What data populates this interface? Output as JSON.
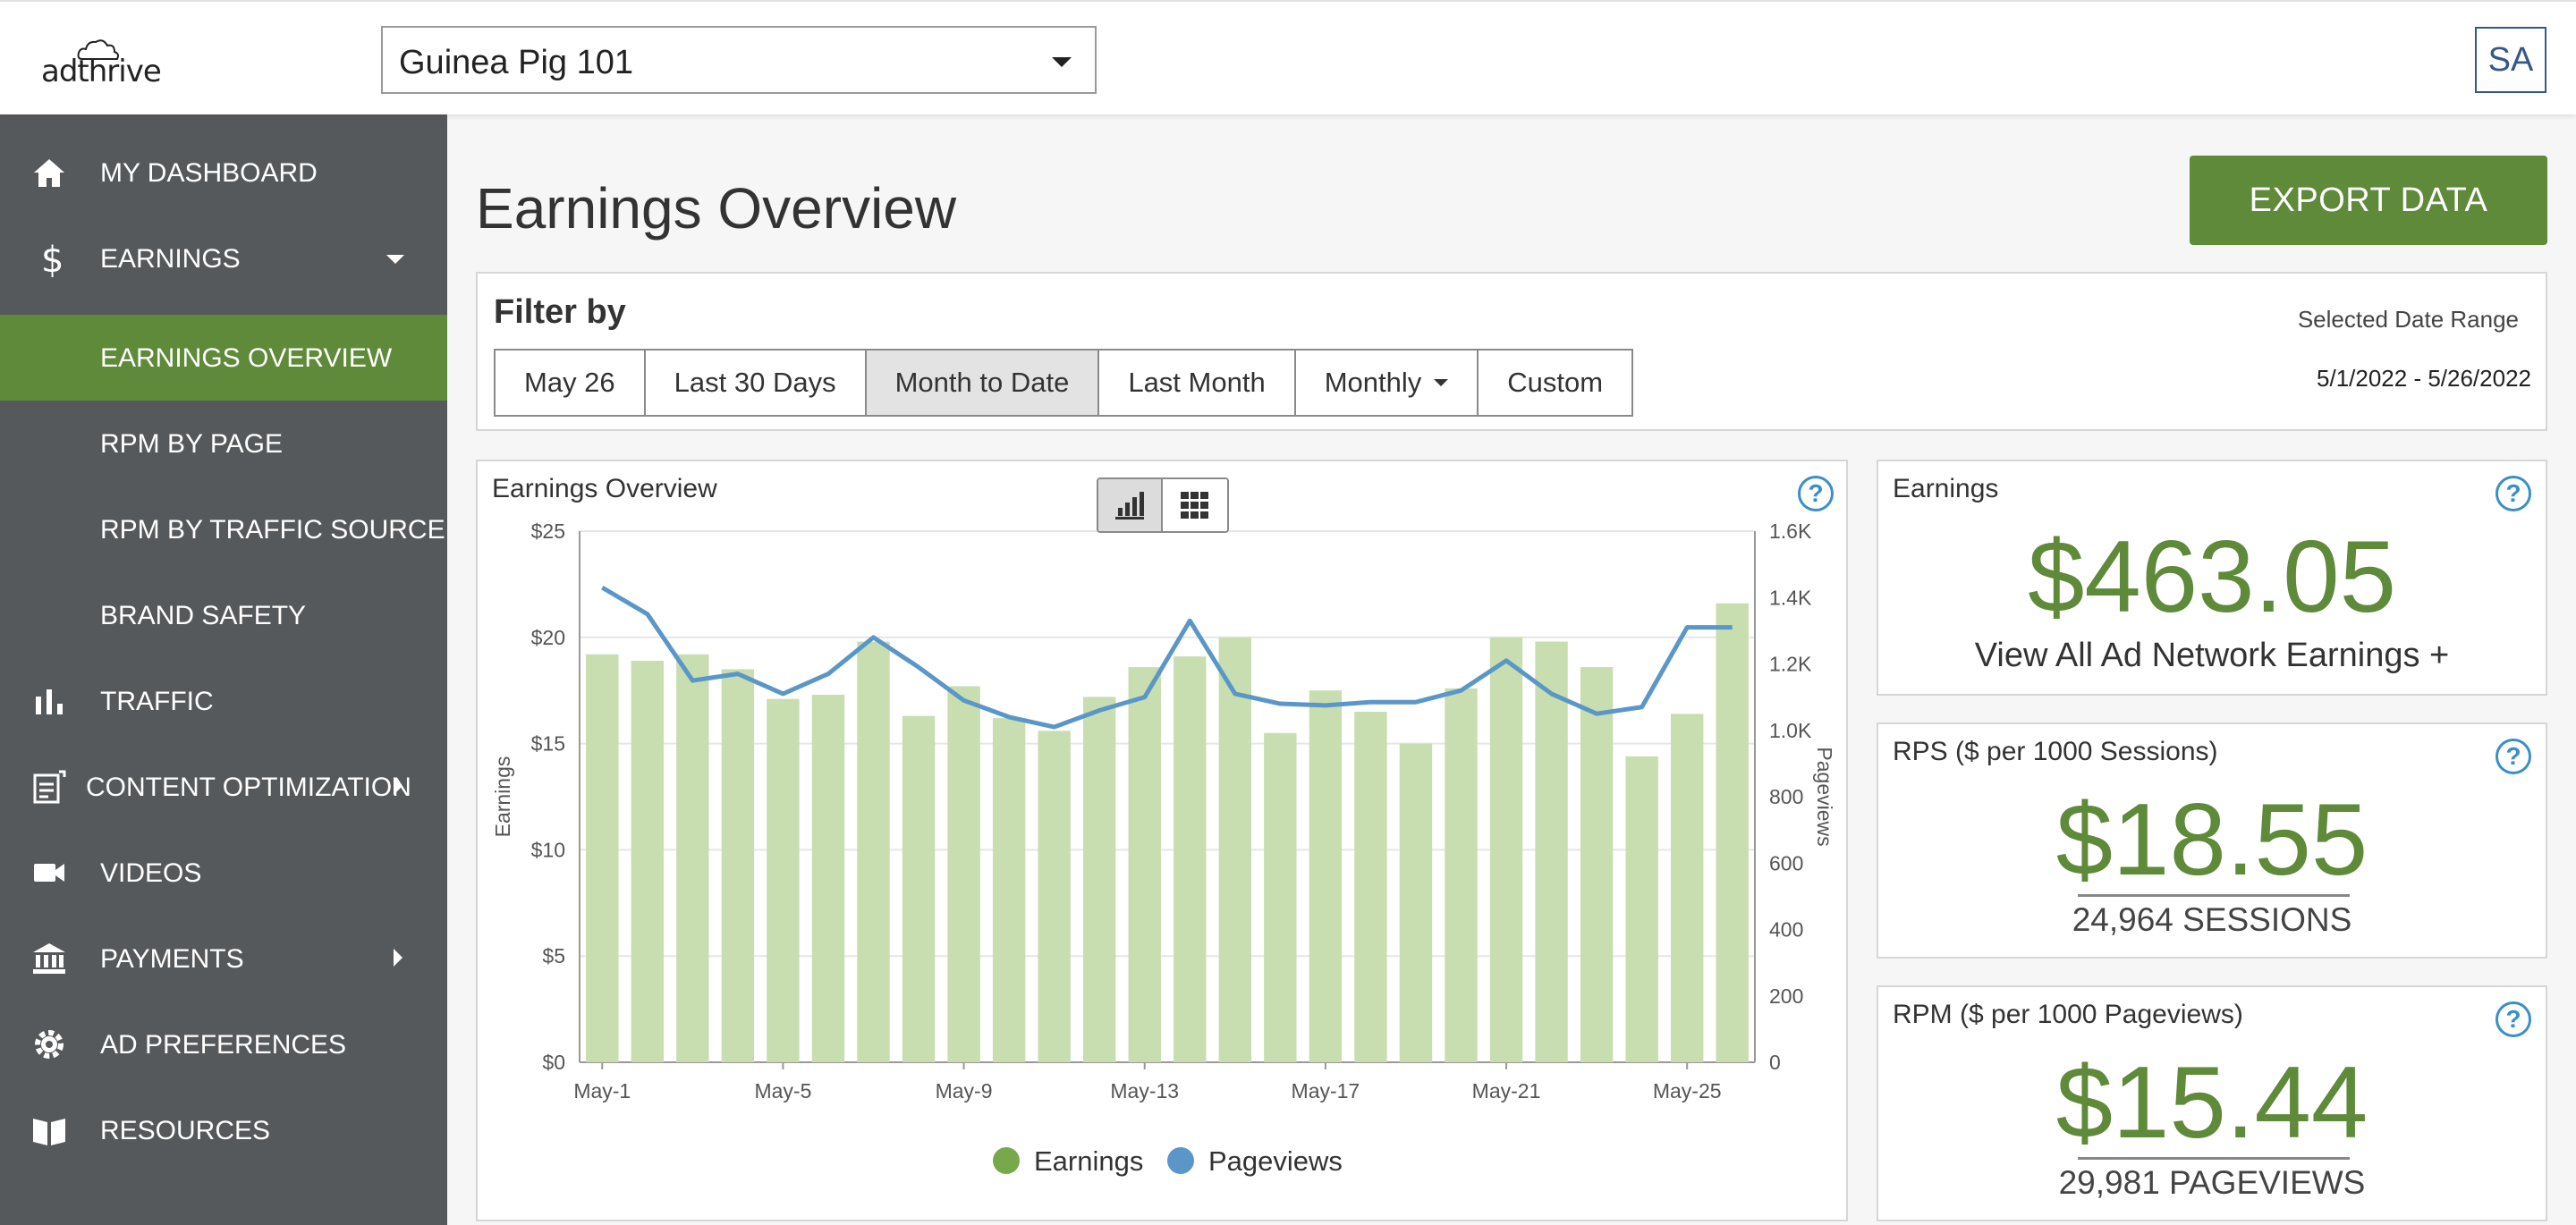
{
  "header": {
    "logo_text": "adthrive",
    "site_select_value": "Guinea Pig 101",
    "avatar_initials": "SA"
  },
  "sidebar": {
    "items": [
      {
        "label": "MY DASHBOARD",
        "icon": "home-icon"
      },
      {
        "label": "EARNINGS",
        "icon": "dollar-icon"
      },
      {
        "label": "EARNINGS OVERVIEW",
        "active": true
      },
      {
        "label": "RPM BY PAGE"
      },
      {
        "label": "RPM BY TRAFFIC SOURCE"
      },
      {
        "label": "BRAND SAFETY"
      },
      {
        "label": "TRAFFIC",
        "icon": "bar-chart-icon"
      },
      {
        "label": "CONTENT OPTIMIZATION",
        "icon": "edit-doc-icon"
      },
      {
        "label": "VIDEOS",
        "icon": "video-camera-icon"
      },
      {
        "label": "PAYMENTS",
        "icon": "bank-icon"
      },
      {
        "label": "AD PREFERENCES",
        "icon": "gear-icon"
      },
      {
        "label": "RESOURCES",
        "icon": "book-icon"
      }
    ]
  },
  "main": {
    "title": "Earnings Overview",
    "export_label": "EXPORT DATA"
  },
  "filter": {
    "title": "Filter by",
    "buttons": [
      "May 26",
      "Last 30 Days",
      "Month to Date",
      "Last Month",
      "Monthly",
      "Custom"
    ],
    "selected": "Month to Date",
    "date_range_label": "Selected Date Range",
    "date_range_value": "5/1/2022 - 5/26/2022"
  },
  "chart_panel": {
    "title": "Earnings Overview"
  },
  "metrics": {
    "earnings": {
      "title": "Earnings",
      "value": "$463.05",
      "link": "View All Ad Network Earnings +"
    },
    "rps": {
      "title": "RPS ($ per 1000 Sessions)",
      "value": "$18.55",
      "sub": "24,964 SESSIONS"
    },
    "rpm": {
      "title": "RPM ($ per 1000 Pageviews)",
      "value": "$15.44",
      "sub": "29,981 PAGEVIEWS"
    }
  },
  "colors": {
    "brand_green": "#5e8a39",
    "sidebar_bg": "#56595c",
    "bar_fill": "#c8deb0",
    "line_stroke": "#5a97c8",
    "help_blue": "#3a8fc7"
  },
  "chart_data": {
    "type": "bar",
    "title": "",
    "xlabel": "",
    "ylabel": "Earnings",
    "y2label": "Pageviews",
    "ylim": [
      0,
      25
    ],
    "y2lim": [
      0,
      1600
    ],
    "yticks": [
      "$0",
      "$5",
      "$10",
      "$15",
      "$20",
      "$25"
    ],
    "y2ticks": [
      "0",
      "200",
      "400",
      "600",
      "800",
      "1.0K",
      "1.2K",
      "1.4K",
      "1.6K"
    ],
    "xticks": [
      "May-1",
      "May-5",
      "May-9",
      "May-13",
      "May-17",
      "May-21",
      "May-25"
    ],
    "grid": true,
    "legend_position": "bottom",
    "categories": [
      "May-1",
      "May-2",
      "May-3",
      "May-4",
      "May-5",
      "May-6",
      "May-7",
      "May-8",
      "May-9",
      "May-10",
      "May-11",
      "May-12",
      "May-13",
      "May-14",
      "May-15",
      "May-16",
      "May-17",
      "May-18",
      "May-19",
      "May-20",
      "May-21",
      "May-22",
      "May-23",
      "May-24",
      "May-25",
      "May-26"
    ],
    "series": [
      {
        "name": "Earnings",
        "type": "bar",
        "axis": "left",
        "color": "#c8deb0",
        "legend_color": "#78a84c",
        "values": [
          19.2,
          18.9,
          19.2,
          18.5,
          17.1,
          17.3,
          19.8,
          16.3,
          17.7,
          16.2,
          15.6,
          17.2,
          18.6,
          19.1,
          20.0,
          15.5,
          17.5,
          16.5,
          15.0,
          17.6,
          20.0,
          19.8,
          18.6,
          14.4,
          16.4,
          21.6
        ]
      },
      {
        "name": "Pageviews",
        "type": "line",
        "axis": "right",
        "color": "#5a97c8",
        "values": [
          1430,
          1350,
          1150,
          1170,
          1110,
          1170,
          1280,
          1190,
          1090,
          1040,
          1010,
          1060,
          1100,
          1330,
          1110,
          1080,
          1075,
          1085,
          1085,
          1120,
          1210,
          1110,
          1050,
          1070,
          1310,
          1310
        ]
      }
    ]
  }
}
